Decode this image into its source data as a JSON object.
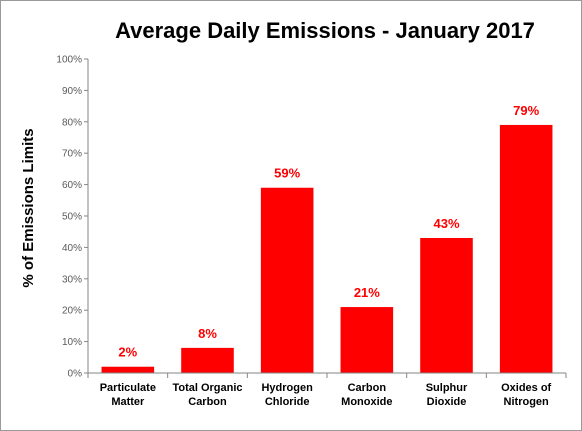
{
  "chart_data": {
    "type": "bar",
    "title": "Average Daily Emissions  - January 2017",
    "xlabel": "",
    "ylabel": "% of Emissions Limits",
    "categories": [
      [
        "Particulate",
        "Matter"
      ],
      [
        "Total Organic",
        "Carbon"
      ],
      [
        "Hydrogen",
        "Chloride"
      ],
      [
        "Carbon",
        "Monoxide"
      ],
      [
        "Sulphur",
        "Dioxide"
      ],
      [
        "Oxides of",
        "Nitrogen"
      ]
    ],
    "values": [
      2,
      8,
      59,
      21,
      43,
      79
    ],
    "data_labels": [
      "2%",
      "8%",
      "59%",
      "21%",
      "43%",
      "79%"
    ],
    "ylim": [
      0,
      100
    ],
    "yticks": [
      0,
      10,
      20,
      30,
      40,
      50,
      60,
      70,
      80,
      90,
      100
    ],
    "ytick_labels": [
      "0%",
      "10%",
      "20%",
      "30%",
      "40%",
      "50%",
      "60%",
      "70%",
      "80%",
      "90%",
      "100%"
    ],
    "grid": false,
    "legend": "none",
    "colors": {
      "bar": "#ff0000",
      "label": "#ff0000",
      "axis": "#868686"
    }
  }
}
